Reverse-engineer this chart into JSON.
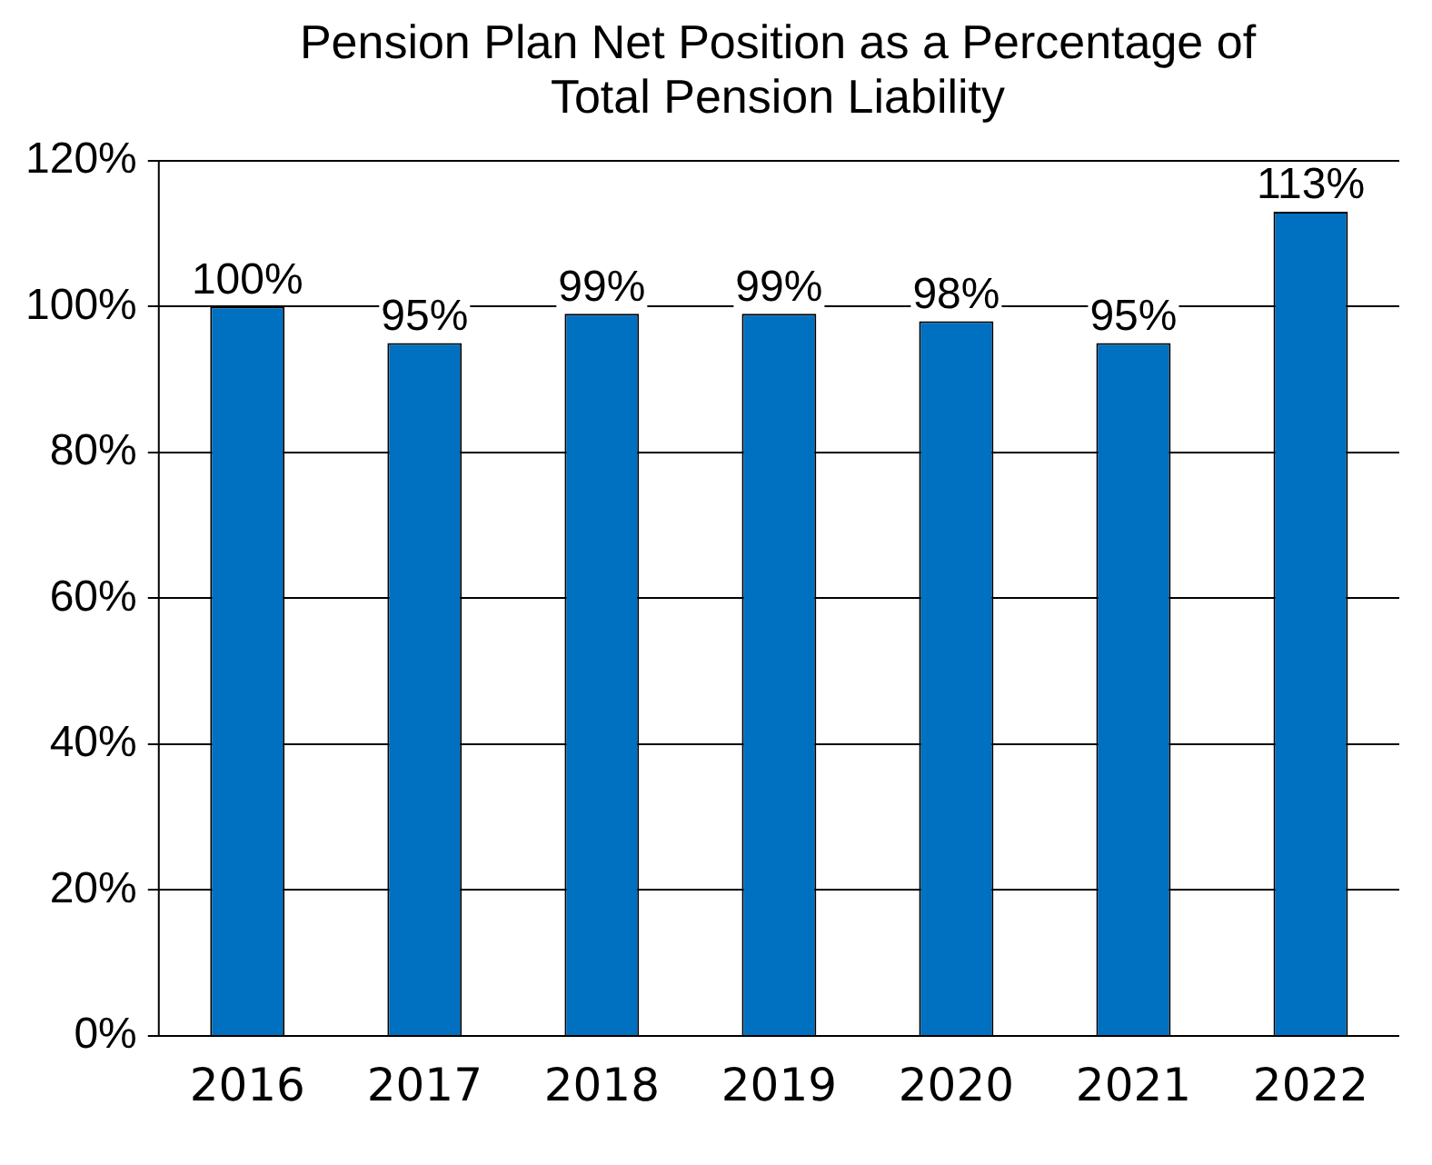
{
  "chart_data": {
    "type": "bar",
    "title": "Pension Plan Net Position as a Percentage of Total Pension Liability",
    "categories": [
      "2016",
      "2017",
      "2018",
      "2019",
      "2020",
      "2021",
      "2022"
    ],
    "values": [
      100,
      95,
      99,
      99,
      98,
      95,
      113
    ],
    "value_labels": [
      "100%",
      "95%",
      "99%",
      "99%",
      "98%",
      "95%",
      "113%"
    ],
    "color": "#0070c0",
    "ylim": [
      0,
      120
    ],
    "yticks": [
      {
        "value": 0,
        "label": "0%"
      },
      {
        "value": 20,
        "label": "20%"
      },
      {
        "value": 40,
        "label": "40%"
      },
      {
        "value": 60,
        "label": "60%"
      },
      {
        "value": 80,
        "label": "80%"
      },
      {
        "value": 100,
        "label": "100%"
      },
      {
        "value": 120,
        "label": "120%"
      }
    ],
    "grid": "y",
    "legend": false
  }
}
